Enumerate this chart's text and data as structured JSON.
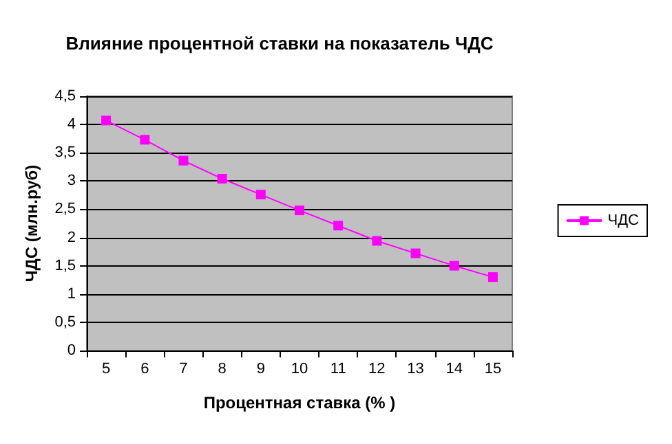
{
  "chart_data": {
    "type": "line",
    "title": "Влияние процентной ставки на показатель ЧДС",
    "xlabel": "Процентная ставка (% )",
    "ylabel": "ЧДС (млн.руб)",
    "categories": [
      "5",
      "6",
      "7",
      "8",
      "9",
      "10",
      "11",
      "12",
      "13",
      "14",
      "15"
    ],
    "series": [
      {
        "name": "ЧДС",
        "color": "#ff00ff",
        "values": [
          4.07,
          3.73,
          3.36,
          3.04,
          2.76,
          2.48,
          2.21,
          1.94,
          1.72,
          1.5,
          1.3
        ]
      }
    ],
    "ylim": [
      0,
      4.5
    ],
    "yticks": [
      0,
      {
        "value": 0.5,
        "label": "0,5"
      },
      1,
      {
        "value": 1.5,
        "label": "1,5"
      },
      2,
      {
        "value": 2.5,
        "label": "2,5"
      },
      3,
      {
        "value": 3.5,
        "label": "3,5"
      },
      4,
      {
        "value": 4.5,
        "label": "4,5"
      }
    ],
    "grid": "y",
    "legend": "right",
    "marker": "square",
    "line_style": "solid"
  }
}
